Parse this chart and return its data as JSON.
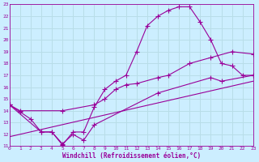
{
  "xlabel": "Windchill (Refroidissement éolien,°C)",
  "bg_color": "#cceeff",
  "grid_color": "#b8dde8",
  "line_color": "#990099",
  "xmin": 0,
  "xmax": 23,
  "ymin": 11,
  "ymax": 23,
  "curve1_x": [
    0,
    1,
    2,
    3,
    4,
    5,
    6,
    7,
    8,
    9,
    10,
    11,
    12,
    13,
    14,
    15,
    16,
    17,
    18,
    19,
    20,
    21,
    22,
    23
  ],
  "curve1_y": [
    14.5,
    13.9,
    13.3,
    12.2,
    12.2,
    11.1,
    12.2,
    12.2,
    14.3,
    15.8,
    16.5,
    17.0,
    19.0,
    21.2,
    22.0,
    22.5,
    22.8,
    22.8,
    21.5,
    20.0,
    18.0,
    17.8,
    17.0,
    17.0
  ],
  "curve2_x": [
    0,
    1,
    5,
    8,
    9,
    10,
    11,
    12,
    14,
    15,
    17,
    19,
    21,
    23
  ],
  "curve2_y": [
    14.5,
    14.0,
    14.0,
    14.5,
    15.0,
    15.8,
    16.2,
    16.3,
    16.8,
    17.0,
    18.0,
    18.5,
    19.0,
    18.8
  ],
  "curve3_x": [
    0,
    3,
    4,
    5,
    6,
    7,
    8,
    14,
    19,
    20,
    23
  ],
  "curve3_y": [
    14.5,
    12.2,
    12.2,
    11.2,
    12.0,
    11.5,
    12.8,
    15.5,
    16.8,
    16.5,
    17.0
  ],
  "curve4_x": [
    0,
    23
  ],
  "curve4_y": [
    11.8,
    16.5
  ],
  "xticks": [
    0,
    1,
    2,
    3,
    4,
    5,
    6,
    7,
    8,
    9,
    10,
    11,
    12,
    13,
    14,
    15,
    16,
    17,
    18,
    19,
    20,
    21,
    22,
    23
  ],
  "yticks": [
    11,
    12,
    13,
    14,
    15,
    16,
    17,
    18,
    19,
    20,
    21,
    22,
    23
  ]
}
